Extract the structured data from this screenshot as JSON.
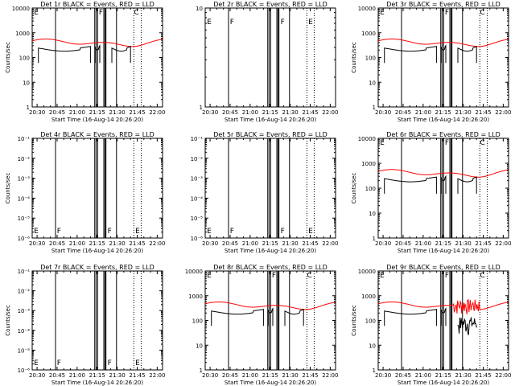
{
  "chart_data": [
    {
      "type": "line",
      "title": "Det 1r BLACK = Events, RED = LLD",
      "xlabel": "Start Time (16-Aug-14 20:26:20)",
      "ylabel": "Counts/sec",
      "yscale": "log",
      "ylim": [
        1,
        10000
      ],
      "ytick_labels": [
        "1",
        "10",
        "100",
        "1000",
        "10000"
      ],
      "xlim": [
        "20:26",
        "22:04"
      ],
      "xtick_labels": [
        "20:30",
        "20:45",
        "21:00",
        "21:15",
        "21:30",
        "21:45",
        "22:00"
      ],
      "has_data": true,
      "letters": [
        "E",
        "F",
        "C"
      ]
    },
    {
      "type": "line",
      "title": "Det 2r BLACK = Events, RED = LLD",
      "xlabel": "Start Time (16-Aug-14 20:26:20)",
      "ylabel": "",
      "yscale": "log",
      "ylim": [
        1,
        10
      ],
      "ytick_labels": [
        "1",
        "10"
      ],
      "xlim": [
        "20:26",
        "22:04"
      ],
      "xtick_labels": [
        "20:30",
        "20:45",
        "21:00",
        "21:15",
        "21:30",
        "21:45",
        "22:00"
      ],
      "has_data": false,
      "letters": [
        "E",
        "F",
        "F",
        "E"
      ]
    },
    {
      "type": "line",
      "title": "Det 3r BLACK = Events, RED = LLD",
      "xlabel": "Start Time (16-Aug-14 20:26:20)",
      "ylabel": "Counts/sec",
      "yscale": "log",
      "ylim": [
        1,
        10000
      ],
      "ytick_labels": [
        "1",
        "10",
        "100",
        "1000",
        "10000"
      ],
      "xlim": [
        "20:26",
        "22:04"
      ],
      "xtick_labels": [
        "20:30",
        "20:45",
        "21:00",
        "21:15",
        "21:30",
        "21:45",
        "22:00"
      ],
      "has_data": true,
      "letters": [
        "E",
        "F",
        "C"
      ]
    },
    {
      "type": "line",
      "title": "Det 4r BLACK = Events, RED = LLD",
      "xlabel": "Start Time (16-Aug-14 20:26:20)",
      "ylabel": "Counts/sec",
      "yscale": "log",
      "ylim": [
        1e-06,
        0.1
      ],
      "ytick_labels": [
        "10⁻⁶",
        "10⁻⁵",
        "10⁻⁴",
        "10⁻³",
        "10⁻²",
        "10⁻¹"
      ],
      "xlim": [
        "20:26",
        "22:04"
      ],
      "xtick_labels": [
        "20:30",
        "20:45",
        "21:00",
        "21:15",
        "21:30",
        "21:45",
        "22:00"
      ],
      "has_data": false,
      "letters": [
        "E",
        "F",
        "F",
        "E"
      ]
    },
    {
      "type": "line",
      "title": "Det 5r BLACK = Events, RED = LLD",
      "xlabel": "Start Time (16-Aug-14 20:26:20)",
      "ylabel": "",
      "yscale": "log",
      "ylim": [
        1e-06,
        0.1
      ],
      "ytick_labels": [
        "10⁻⁶",
        "10⁻⁵",
        "10⁻⁴",
        "10⁻³",
        "10⁻²",
        "10⁻¹"
      ],
      "xlim": [
        "20:26",
        "22:04"
      ],
      "xtick_labels": [
        "20:30",
        "20:45",
        "21:00",
        "21:15",
        "21:30",
        "21:45",
        "22:00"
      ],
      "has_data": false,
      "letters": [
        "E",
        "F",
        "F",
        "E"
      ]
    },
    {
      "type": "line",
      "title": "Det 6r BLACK = Events, RED = LLD",
      "xlabel": "Start Time (16-Aug-14 20:26:20)",
      "ylabel": "Counts/sec",
      "yscale": "log",
      "ylim": [
        1,
        10000
      ],
      "ytick_labels": [
        "1",
        "10",
        "100",
        "1000",
        "10000"
      ],
      "xlim": [
        "20:26",
        "22:04"
      ],
      "xtick_labels": [
        "20:30",
        "20:45",
        "21:00",
        "21:15",
        "21:30",
        "21:45",
        "22:00"
      ],
      "has_data": true,
      "letters": [
        "E",
        "F",
        "C"
      ]
    },
    {
      "type": "line",
      "title": "Det 7r BLACK = Events, RED = LLD",
      "xlabel": "Start Time (16-Aug-14 20:26:20)",
      "ylabel": "Counts/sec",
      "yscale": "log",
      "ylim": [
        1e-06,
        0.1
      ],
      "ytick_labels": [
        "10⁻⁶",
        "10⁻⁵",
        "10⁻⁴",
        "10⁻³",
        "10⁻²",
        "10⁻¹"
      ],
      "xlim": [
        "20:26",
        "22:04"
      ],
      "xtick_labels": [
        "20:30",
        "20:45",
        "21:00",
        "21:15",
        "21:30",
        "21:45",
        "22:00"
      ],
      "has_data": false,
      "letters": [
        "E",
        "F",
        "F",
        "E"
      ]
    },
    {
      "type": "line",
      "title": "Det 8r BLACK = Events, RED = LLD",
      "xlabel": "Start Time (16-Aug-14 20:26:20)",
      "ylabel": "",
      "yscale": "log",
      "ylim": [
        1,
        10000
      ],
      "ytick_labels": [
        "1",
        "10",
        "100",
        "1000",
        "10000"
      ],
      "xlim": [
        "20:26",
        "22:04"
      ],
      "xtick_labels": [
        "20:30",
        "20:45",
        "21:00",
        "21:15",
        "21:30",
        "21:45",
        "22:00"
      ],
      "has_data": true,
      "letters": [
        "E",
        "F",
        "C"
      ]
    },
    {
      "type": "line",
      "title": "Det 9r BLACK = Events, RED = LLD",
      "xlabel": "Start Time (16-Aug-14 20:26:20)",
      "ylabel": "Counts/sec",
      "yscale": "log",
      "ylim": [
        1,
        10000
      ],
      "ytick_labels": [
        "1",
        "10",
        "100",
        "1000",
        "10000"
      ],
      "xlim": [
        "20:26",
        "22:04"
      ],
      "xtick_labels": [
        "20:30",
        "20:45",
        "21:00",
        "21:15",
        "21:30",
        "21:45",
        "22:00"
      ],
      "has_data": true,
      "letters": [
        "E",
        "F",
        "C"
      ]
    }
  ],
  "colors": {
    "events": "#000000",
    "lld": "#ff0000",
    "background": "#ffffff"
  }
}
